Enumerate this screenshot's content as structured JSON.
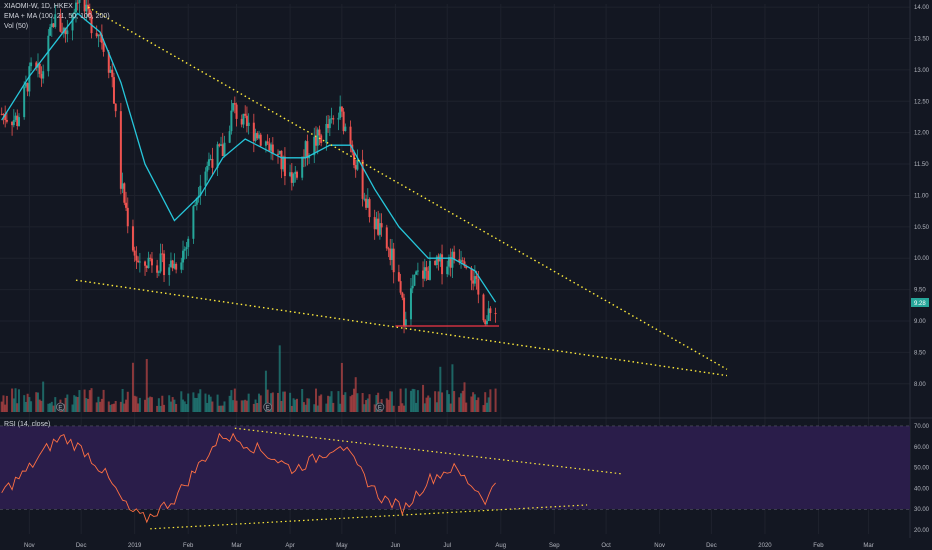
{
  "header": {
    "symbol_line": "XIAOMI-W, 1D, HKEX",
    "ema_line": "EMA + MA (100, 21, 50, 100, 200)",
    "vol_line": "Vol (50)",
    "rsi_line": "RSI (14, close)"
  },
  "price_badge": "9.28",
  "earnings_marker": "E",
  "colors": {
    "background": "#131722",
    "up": "#26a69a",
    "down": "#ef5350",
    "ema": "#26c6da",
    "trend": "#ffeb3b",
    "support": "#f23645",
    "rsi_line": "#ff7043",
    "rsi_band": "#2a1d4a",
    "grid": "#1e222d"
  },
  "chart_data": [
    {
      "type": "candlestick",
      "title": "XIAOMI-W, 1D, HKEX",
      "ylim": [
        7.55,
        14.05
      ],
      "y_ticks": [
        "14.00",
        "13.50",
        "13.00",
        "12.50",
        "12.00",
        "11.50",
        "11.00",
        "10.50",
        "10.00",
        "9.50",
        "9.00",
        "8.50",
        "8.00"
      ],
      "x_ticks": [
        "Nov",
        "Dec",
        "2019",
        "Feb",
        "Mar",
        "Apr",
        "May",
        "Jun",
        "Jul",
        "Aug",
        "Sep",
        "Oct",
        "Nov",
        "Dec",
        "2020",
        "Feb",
        "Mar"
      ],
      "x_range": [
        "2018-10-15",
        "2020-03-25"
      ],
      "price_path": [
        [
          "2018-10-16",
          12.3
        ],
        [
          "2018-10-25",
          12.2
        ],
        [
          "2018-11-02",
          13.0
        ],
        [
          "2018-11-08",
          12.9
        ],
        [
          "2018-11-15",
          13.8
        ],
        [
          "2018-11-22",
          13.6
        ],
        [
          "2018-11-29",
          14.2
        ],
        [
          "2018-12-05",
          13.8
        ],
        [
          "2018-12-12",
          13.6
        ],
        [
          "2018-12-19",
          12.9
        ],
        [
          "2018-12-24",
          11.2
        ],
        [
          "2018-12-31",
          10.2
        ],
        [
          "2019-01-04",
          9.8
        ],
        [
          "2019-01-10",
          10.0
        ],
        [
          "2019-01-17",
          9.9
        ],
        [
          "2019-01-24",
          9.9
        ],
        [
          "2019-01-31",
          10.2
        ],
        [
          "2019-02-08",
          11.3
        ],
        [
          "2019-02-14",
          11.6
        ],
        [
          "2019-02-21",
          11.7
        ],
        [
          "2019-02-27",
          12.4
        ],
        [
          "2019-03-06",
          12.1
        ],
        [
          "2019-03-13",
          12.0
        ],
        [
          "2019-03-20",
          11.8
        ],
        [
          "2019-03-27",
          11.5
        ],
        [
          "2019-04-03",
          11.3
        ],
        [
          "2019-04-10",
          11.7
        ],
        [
          "2019-04-17",
          11.9
        ],
        [
          "2019-04-24",
          12.1
        ],
        [
          "2019-04-30",
          12.3
        ],
        [
          "2019-05-06",
          11.9
        ],
        [
          "2019-05-10",
          11.4
        ],
        [
          "2019-05-16",
          10.8
        ],
        [
          "2019-05-23",
          10.4
        ],
        [
          "2019-05-30",
          10.0
        ],
        [
          "2019-06-06",
          9.1
        ],
        [
          "2019-06-13",
          9.7
        ],
        [
          "2019-06-20",
          9.8
        ],
        [
          "2019-06-27",
          9.9
        ],
        [
          "2019-07-04",
          10.0
        ],
        [
          "2019-07-10",
          10.1
        ],
        [
          "2019-07-15",
          9.8
        ],
        [
          "2019-07-19",
          9.4
        ],
        [
          "2019-07-24",
          9.0
        ],
        [
          "2019-07-29",
          9.25
        ]
      ],
      "ema_path": [
        [
          "2018-10-16",
          12.2
        ],
        [
          "2018-11-01",
          12.9
        ],
        [
          "2018-11-15",
          13.4
        ],
        [
          "2018-11-29",
          13.9
        ],
        [
          "2018-12-12",
          13.6
        ],
        [
          "2018-12-24",
          12.8
        ],
        [
          "2019-01-07",
          11.5
        ],
        [
          "2019-01-24",
          10.6
        ],
        [
          "2019-02-08",
          11.0
        ],
        [
          "2019-02-21",
          11.6
        ],
        [
          "2019-03-06",
          11.9
        ],
        [
          "2019-03-27",
          11.6
        ],
        [
          "2019-04-10",
          11.6
        ],
        [
          "2019-04-24",
          11.8
        ],
        [
          "2019-05-06",
          11.8
        ],
        [
          "2019-05-20",
          11.1
        ],
        [
          "2019-06-03",
          10.5
        ],
        [
          "2019-06-20",
          10.0
        ],
        [
          "2019-07-04",
          10.0
        ],
        [
          "2019-07-17",
          9.8
        ],
        [
          "2019-07-29",
          9.3
        ]
      ],
      "trendlines": [
        {
          "name": "upper",
          "from": [
            "2018-12-05",
            14.0
          ],
          "to": [
            "2019-12-10",
            8.23
          ]
        },
        {
          "name": "lower",
          "from": [
            "2018-11-28",
            9.65
          ],
          "to": [
            "2019-12-10",
            8.13
          ]
        }
      ],
      "support_line": {
        "from": [
          "2019-06-01",
          8.92
        ],
        "to": [
          "2019-07-31",
          8.92
        ]
      },
      "earnings_dates": [
        "2018-11-19",
        "2019-03-19",
        "2019-05-23"
      ],
      "volume_ma_note": "Vol (50)"
    },
    {
      "type": "line",
      "title": "RSI (14, close)",
      "ylim": [
        20,
        70
      ],
      "y_ticks": [
        "70.00",
        "60.00",
        "50.00",
        "40.00",
        "30.00",
        "20.00"
      ],
      "band": [
        30,
        70
      ],
      "rsi_path": [
        [
          "2018-10-16",
          38
        ],
        [
          "2018-10-30",
          48
        ],
        [
          "2018-11-12",
          60
        ],
        [
          "2018-11-20",
          65
        ],
        [
          "2018-12-03",
          58
        ],
        [
          "2018-12-14",
          48
        ],
        [
          "2018-12-28",
          30
        ],
        [
          "2019-01-07",
          25
        ],
        [
          "2019-01-24",
          35
        ],
        [
          "2019-02-08",
          52
        ],
        [
          "2019-02-21",
          66
        ],
        [
          "2019-03-06",
          62
        ],
        [
          "2019-03-20",
          56
        ],
        [
          "2019-04-03",
          49
        ],
        [
          "2019-04-17",
          55
        ],
        [
          "2019-04-30",
          62
        ],
        [
          "2019-05-10",
          50
        ],
        [
          "2019-05-23",
          36
        ],
        [
          "2019-06-06",
          30
        ],
        [
          "2019-06-20",
          44
        ],
        [
          "2019-07-04",
          50
        ],
        [
          "2019-07-15",
          42
        ],
        [
          "2019-07-24",
          34
        ],
        [
          "2019-07-29",
          43
        ]
      ],
      "trendlines": [
        {
          "name": "rsi-upper",
          "from": [
            "2019-02-28",
            69
          ],
          "to": [
            "2019-10-10",
            47
          ]
        },
        {
          "name": "rsi-lower",
          "from": [
            "2019-01-10",
            20.5
          ],
          "to": [
            "2019-09-20",
            32
          ]
        }
      ]
    }
  ]
}
